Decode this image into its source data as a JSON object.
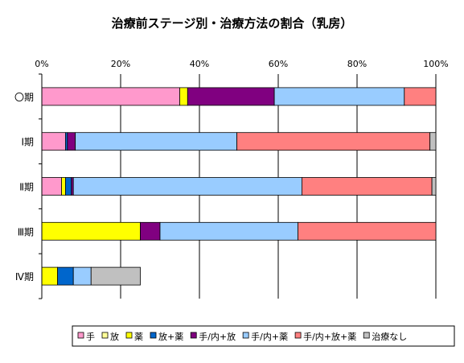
{
  "chart_data": {
    "type": "bar",
    "orientation": "horizontal",
    "stacked": "percent",
    "title": "治療前ステージ別・治療方法の割合（乳房）",
    "xlabel": "",
    "ylabel": "",
    "xlim": [
      0,
      100
    ],
    "x_ticks": [
      "0%",
      "20%",
      "40%",
      "60%",
      "80%",
      "100%"
    ],
    "categories": [
      "〇期",
      "Ⅰ期",
      "Ⅱ期",
      "Ⅲ期",
      "Ⅳ期"
    ],
    "series": [
      {
        "name": "手",
        "color": "#FF99CC",
        "values": [
          35,
          6,
          5,
          0,
          0
        ]
      },
      {
        "name": "放",
        "color": "#FFFF99",
        "values": [
          0,
          0,
          0,
          0,
          0
        ]
      },
      {
        "name": "薬",
        "color": "#FFFF00",
        "values": [
          2,
          0,
          1,
          25,
          4
        ]
      },
      {
        "name": "放+薬",
        "color": "#0066CC",
        "values": [
          0,
          0.5,
          1.5,
          0,
          4
        ]
      },
      {
        "name": "手/内+放",
        "color": "#800080",
        "values": [
          22,
          2,
          0.5,
          5,
          0
        ]
      },
      {
        "name": "手/内+薬",
        "color": "#99CCFF",
        "values": [
          33,
          41,
          58,
          35,
          4.5
        ]
      },
      {
        "name": "手/内+放+薬",
        "color": "#FF8080",
        "values": [
          8,
          49,
          33,
          35,
          0
        ]
      },
      {
        "name": "治療なし",
        "color": "#C0C0C0",
        "values": [
          0,
          1.5,
          1,
          0,
          12.5
        ]
      }
    ],
    "grid": true,
    "legend_position": "bottom"
  }
}
